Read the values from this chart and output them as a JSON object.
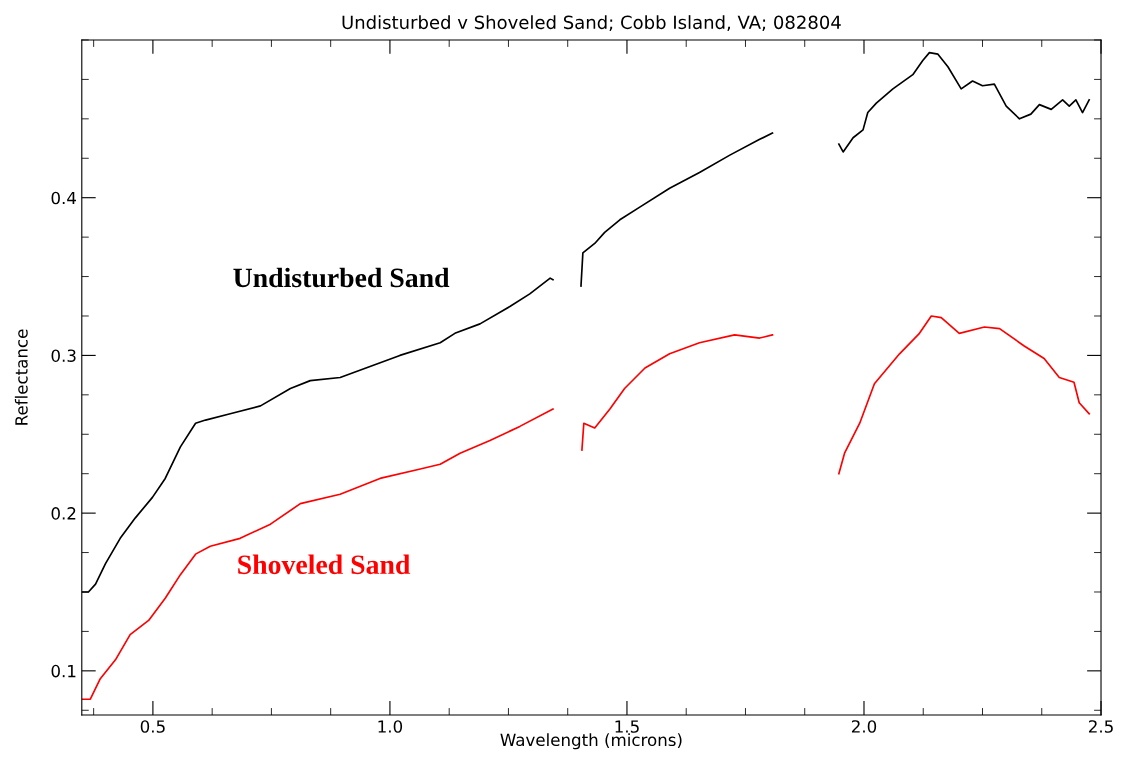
{
  "chart_data": {
    "type": "line",
    "title": "Undisturbed v Shoveled Sand; Cobb Island, VA; 082804",
    "xlabel": "Wavelength (microns)",
    "ylabel": "Reflectance",
    "xlim": [
      0.35,
      2.5
    ],
    "ylim": [
      0.072,
      0.5
    ],
    "xticks": [
      {
        "value": 0.375,
        "label": null
      },
      0.5,
      {
        "value": 0.625,
        "label": null
      },
      {
        "value": 0.75,
        "label": null
      },
      {
        "value": 0.875,
        "label": null
      },
      {
        "value": 1.0,
        "label": "1.0"
      },
      {
        "value": 1.125,
        "label": null
      },
      {
        "value": 1.25,
        "label": null
      },
      {
        "value": 1.375,
        "label": null
      },
      1.5,
      {
        "value": 1.625,
        "label": null
      },
      {
        "value": 1.75,
        "label": null
      },
      {
        "value": 1.875,
        "label": null
      },
      {
        "value": 2.0,
        "label": "2.0"
      },
      {
        "value": 2.125,
        "label": null
      },
      {
        "value": 2.25,
        "label": null
      },
      {
        "value": 2.375,
        "label": null
      },
      2.5
    ],
    "yticks": [
      {
        "value": 0.075,
        "label": null
      },
      0.1,
      {
        "value": 0.125,
        "label": null
      },
      {
        "value": 0.15,
        "label": null
      },
      {
        "value": 0.175,
        "label": null
      },
      0.2,
      {
        "value": 0.225,
        "label": null
      },
      {
        "value": 0.25,
        "label": null
      },
      {
        "value": 0.275,
        "label": null
      },
      0.3,
      {
        "value": 0.325,
        "label": null
      },
      {
        "value": 0.35,
        "label": null
      },
      {
        "value": 0.375,
        "label": null
      },
      0.4,
      {
        "value": 0.425,
        "label": null
      },
      {
        "value": 0.45,
        "label": null
      },
      {
        "value": 0.475,
        "label": null
      },
      {
        "value": 0.5,
        "label": null
      }
    ],
    "grid": false,
    "legend": false,
    "marker": "none",
    "line_style": "solid",
    "series": [
      {
        "name": "Undisturbed Sand",
        "color": "#000000",
        "x": [
          0.351,
          0.364,
          0.379,
          0.4,
          0.431,
          0.463,
          0.499,
          0.526,
          0.558,
          0.59,
          0.611,
          0.663,
          0.727,
          0.79,
          0.832,
          0.895,
          0.958,
          1.021,
          1.106,
          1.137,
          1.19,
          1.253,
          1.295,
          1.338,
          1.344,
          1.37,
          1.403,
          1.407,
          1.432,
          1.453,
          1.485,
          1.527,
          1.59,
          1.653,
          1.717,
          1.78,
          1.807,
          1.88,
          1.947,
          1.956,
          1.977,
          1.998,
          2.008,
          2.026,
          2.061,
          2.103,
          2.124,
          2.138,
          2.156,
          2.177,
          2.205,
          2.229,
          2.25,
          2.275,
          2.3,
          2.328,
          2.352,
          2.37,
          2.395,
          2.419,
          2.433,
          2.447,
          2.461,
          2.475
        ],
        "values": [
          0.15,
          0.15,
          0.155,
          0.168,
          0.184,
          0.197,
          0.21,
          0.222,
          0.242,
          0.257,
          0.259,
          0.263,
          0.268,
          0.279,
          0.284,
          0.286,
          0.293,
          0.3,
          0.308,
          0.314,
          0.32,
          0.331,
          0.339,
          0.349,
          0.348,
          null,
          0.344,
          0.365,
          0.371,
          0.378,
          0.386,
          0.394,
          0.406,
          0.416,
          0.427,
          0.437,
          0.441,
          null,
          0.434,
          0.429,
          0.438,
          0.443,
          0.454,
          0.46,
          0.469,
          0.478,
          0.487,
          0.492,
          0.491,
          0.483,
          0.469,
          0.474,
          0.471,
          0.472,
          0.458,
          0.45,
          0.453,
          0.459,
          0.456,
          0.462,
          0.458,
          0.462,
          0.454,
          0.462
        ]
      },
      {
        "name": "Shoveled Sand",
        "color": "#ff0000",
        "x": [
          0.351,
          0.368,
          0.389,
          0.421,
          0.452,
          0.491,
          0.526,
          0.558,
          0.59,
          0.621,
          0.684,
          0.748,
          0.811,
          0.895,
          0.979,
          1.064,
          1.106,
          1.148,
          1.211,
          1.274,
          1.344,
          1.37,
          1.405,
          1.409,
          1.432,
          1.464,
          1.495,
          1.538,
          1.59,
          1.653,
          1.727,
          1.78,
          1.807,
          1.88,
          1.947,
          1.959,
          1.991,
          2.022,
          2.075,
          2.117,
          2.142,
          2.163,
          2.201,
          2.254,
          2.286,
          2.338,
          2.38,
          2.412,
          2.443,
          2.454,
          2.475
        ],
        "values": [
          0.082,
          0.082,
          0.095,
          0.107,
          0.123,
          0.132,
          0.146,
          0.161,
          0.174,
          0.179,
          0.184,
          0.193,
          0.206,
          0.212,
          0.222,
          0.228,
          0.231,
          0.238,
          0.246,
          0.255,
          0.266,
          null,
          0.24,
          0.257,
          0.254,
          0.266,
          0.279,
          0.292,
          0.301,
          0.308,
          0.313,
          0.311,
          0.313,
          null,
          0.225,
          0.238,
          0.257,
          0.282,
          0.301,
          0.314,
          0.325,
          0.324,
          0.314,
          0.318,
          0.317,
          0.306,
          0.298,
          0.286,
          0.283,
          0.27,
          0.263
        ]
      }
    ]
  }
}
